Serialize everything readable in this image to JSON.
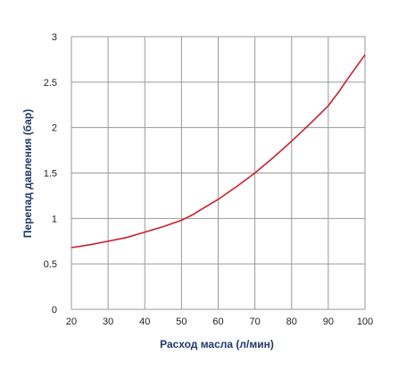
{
  "chart_data": {
    "type": "line",
    "xlabel": "Расход масла (л/мин)",
    "ylabel": "Перепад давления (бар)",
    "xlim": [
      20,
      100
    ],
    "ylim": [
      0,
      3
    ],
    "xticks": [
      20,
      30,
      40,
      50,
      60,
      70,
      80,
      90,
      100
    ],
    "yticks": [
      0,
      0.5,
      1,
      1.5,
      2,
      2.5,
      3
    ],
    "ytick_labels": [
      "0",
      "0.5",
      "1",
      "1.5",
      "2",
      "2.5",
      "3"
    ],
    "grid": true,
    "series": [
      {
        "x": [
          20,
          25,
          30,
          35,
          40,
          45,
          50,
          53,
          55,
          60,
          65,
          70,
          75,
          80,
          85,
          90,
          93,
          95,
          100
        ],
        "y": [
          0.68,
          0.71,
          0.75,
          0.79,
          0.85,
          0.91,
          0.98,
          1.04,
          1.09,
          1.21,
          1.35,
          1.5,
          1.67,
          1.85,
          2.04,
          2.24,
          2.4,
          2.52,
          2.8
        ]
      }
    ]
  },
  "colors": {
    "line": "#cc1f2e",
    "axis_label": "#1f3a6b",
    "grid": "#9a9a9a"
  }
}
